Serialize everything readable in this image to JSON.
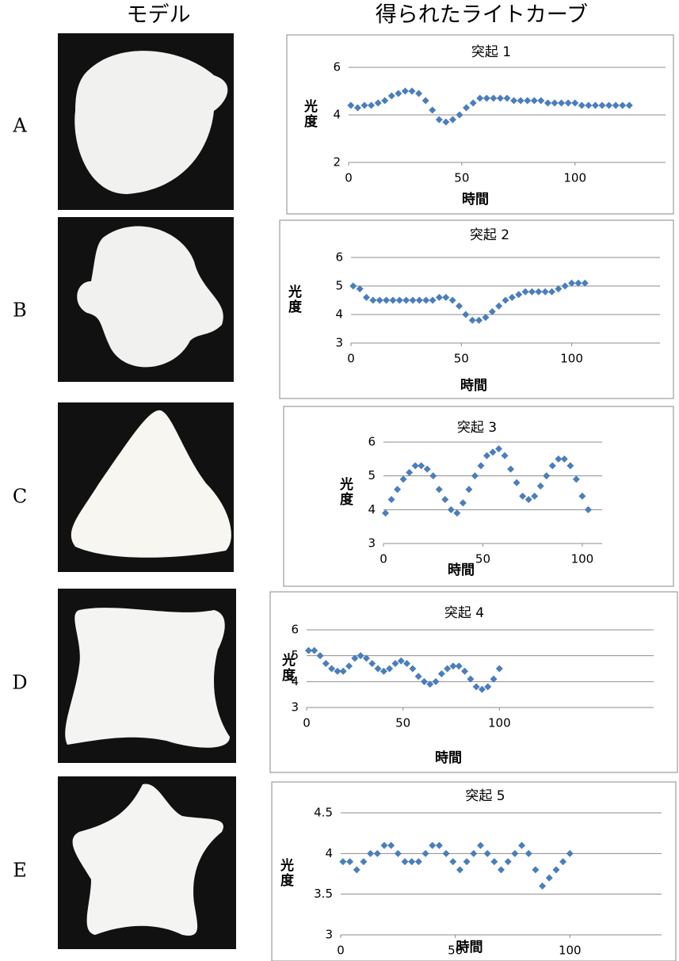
{
  "header": {
    "model": "モデル",
    "curves": "得られたライトカーブ"
  },
  "rows": [
    "A",
    "B",
    "C",
    "D",
    "E"
  ],
  "chart_data": [
    {
      "type": "scatter",
      "title": "突起 1",
      "y_label": "光度",
      "x_label": "時間",
      "color": "#4a7ebb",
      "grid": true,
      "xlim": [
        0,
        140
      ],
      "ylim": [
        2,
        6
      ],
      "xticks": [
        0,
        50,
        100
      ],
      "yticks": [
        2,
        4,
        6
      ],
      "x": [
        1,
        4,
        7,
        10,
        13,
        16,
        19,
        22,
        25,
        28,
        31,
        34,
        37,
        40,
        43,
        46,
        49,
        52,
        55,
        58,
        61,
        64,
        67,
        70,
        73,
        76,
        79,
        82,
        85,
        88,
        91,
        94,
        97,
        100,
        103,
        106,
        109,
        112,
        115,
        118,
        121,
        124
      ],
      "values": [
        4.4,
        4.3,
        4.4,
        4.4,
        4.5,
        4.6,
        4.8,
        4.9,
        5.0,
        5.0,
        4.9,
        4.6,
        4.2,
        3.8,
        3.7,
        3.8,
        4.0,
        4.3,
        4.5,
        4.7,
        4.7,
        4.7,
        4.7,
        4.7,
        4.6,
        4.6,
        4.6,
        4.6,
        4.6,
        4.5,
        4.5,
        4.5,
        4.5,
        4.5,
        4.4,
        4.4,
        4.4,
        4.4,
        4.4,
        4.4,
        4.4,
        4.4
      ]
    },
    {
      "type": "scatter",
      "title": "突起 2",
      "y_label": "光度",
      "x_label": "時間",
      "color": "#4a7ebb",
      "grid": true,
      "xlim": [
        0,
        140
      ],
      "ylim": [
        3,
        6
      ],
      "xticks": [
        0,
        50,
        100
      ],
      "yticks": [
        3,
        4,
        5,
        6
      ],
      "x": [
        1,
        4,
        7,
        10,
        13,
        16,
        19,
        22,
        25,
        28,
        31,
        34,
        37,
        40,
        43,
        46,
        49,
        52,
        55,
        58,
        61,
        64,
        67,
        70,
        73,
        76,
        79,
        82,
        85,
        88,
        91,
        94,
        97,
        100,
        103,
        106
      ],
      "values": [
        5.0,
        4.9,
        4.6,
        4.5,
        4.5,
        4.5,
        4.5,
        4.5,
        4.5,
        4.5,
        4.5,
        4.5,
        4.5,
        4.6,
        4.6,
        4.5,
        4.3,
        4.0,
        3.8,
        3.8,
        3.9,
        4.1,
        4.3,
        4.5,
        4.6,
        4.7,
        4.8,
        4.8,
        4.8,
        4.8,
        4.8,
        4.9,
        5.0,
        5.1,
        5.1,
        5.1
      ]
    },
    {
      "type": "scatter",
      "title": "突起 3",
      "y_label": "光度",
      "x_label": "時間",
      "color": "#4a7ebb",
      "grid": true,
      "xlim": [
        0,
        110
      ],
      "ylim": [
        3,
        6
      ],
      "xticks": [
        0,
        50,
        100
      ],
      "yticks": [
        3,
        4,
        5,
        6
      ],
      "x": [
        1,
        4,
        7,
        10,
        13,
        16,
        19,
        22,
        25,
        28,
        31,
        34,
        37,
        40,
        43,
        46,
        49,
        52,
        55,
        58,
        61,
        64,
        67,
        70,
        73,
        76,
        79,
        82,
        85,
        88,
        91,
        94,
        97,
        100,
        103
      ],
      "values": [
        3.9,
        4.3,
        4.6,
        4.9,
        5.1,
        5.3,
        5.3,
        5.2,
        5.0,
        4.6,
        4.3,
        4.0,
        3.9,
        4.2,
        4.6,
        5.0,
        5.3,
        5.6,
        5.7,
        5.8,
        5.6,
        5.2,
        4.8,
        4.4,
        4.3,
        4.4,
        4.7,
        5.0,
        5.3,
        5.5,
        5.5,
        5.3,
        4.9,
        4.4,
        4.0
      ]
    },
    {
      "type": "scatter",
      "title": "突起 4",
      "y_label": "光度",
      "x_label": "時間",
      "color": "#4a7ebb",
      "grid": true,
      "xlim": [
        0,
        180
      ],
      "ylim": [
        3,
        6
      ],
      "xticks": [
        0,
        50,
        100
      ],
      "yticks": [
        3,
        4,
        5,
        6
      ],
      "x": [
        1,
        4,
        7,
        10,
        13,
        16,
        19,
        22,
        25,
        28,
        31,
        34,
        37,
        40,
        43,
        46,
        49,
        52,
        55,
        58,
        61,
        64,
        67,
        70,
        73,
        76,
        79,
        82,
        85,
        88,
        91,
        94,
        97,
        100
      ],
      "values": [
        5.2,
        5.2,
        5.0,
        4.7,
        4.5,
        4.4,
        4.4,
        4.6,
        4.9,
        5.0,
        4.9,
        4.7,
        4.5,
        4.4,
        4.5,
        4.7,
        4.8,
        4.7,
        4.5,
        4.2,
        4.0,
        3.9,
        4.0,
        4.3,
        4.5,
        4.6,
        4.6,
        4.4,
        4.1,
        3.8,
        3.7,
        3.8,
        4.1,
        4.5
      ]
    },
    {
      "type": "scatter",
      "title": "突起 5",
      "y_label": "光度",
      "x_label": "時間",
      "color": "#4a7ebb",
      "grid": true,
      "xlim": [
        0,
        140
      ],
      "ylim": [
        3,
        4.5
      ],
      "xticks": [
        0,
        50,
        100
      ],
      "yticks": [
        3,
        3.5,
        4,
        4.5
      ],
      "x": [
        1,
        4,
        7,
        10,
        13,
        16,
        19,
        22,
        25,
        28,
        31,
        34,
        37,
        40,
        43,
        46,
        49,
        52,
        55,
        58,
        61,
        64,
        67,
        70,
        73,
        76,
        79,
        82,
        85,
        88,
        91,
        94,
        97,
        100
      ],
      "values": [
        3.9,
        3.9,
        3.8,
        3.9,
        4.0,
        4.0,
        4.1,
        4.1,
        4.0,
        3.9,
        3.9,
        3.9,
        4.0,
        4.1,
        4.1,
        4.0,
        3.9,
        3.8,
        3.9,
        4.0,
        4.1,
        4.0,
        3.9,
        3.8,
        3.9,
        4.0,
        4.1,
        4.0,
        3.8,
        3.6,
        3.7,
        3.8,
        3.9,
        4.0
      ]
    }
  ]
}
